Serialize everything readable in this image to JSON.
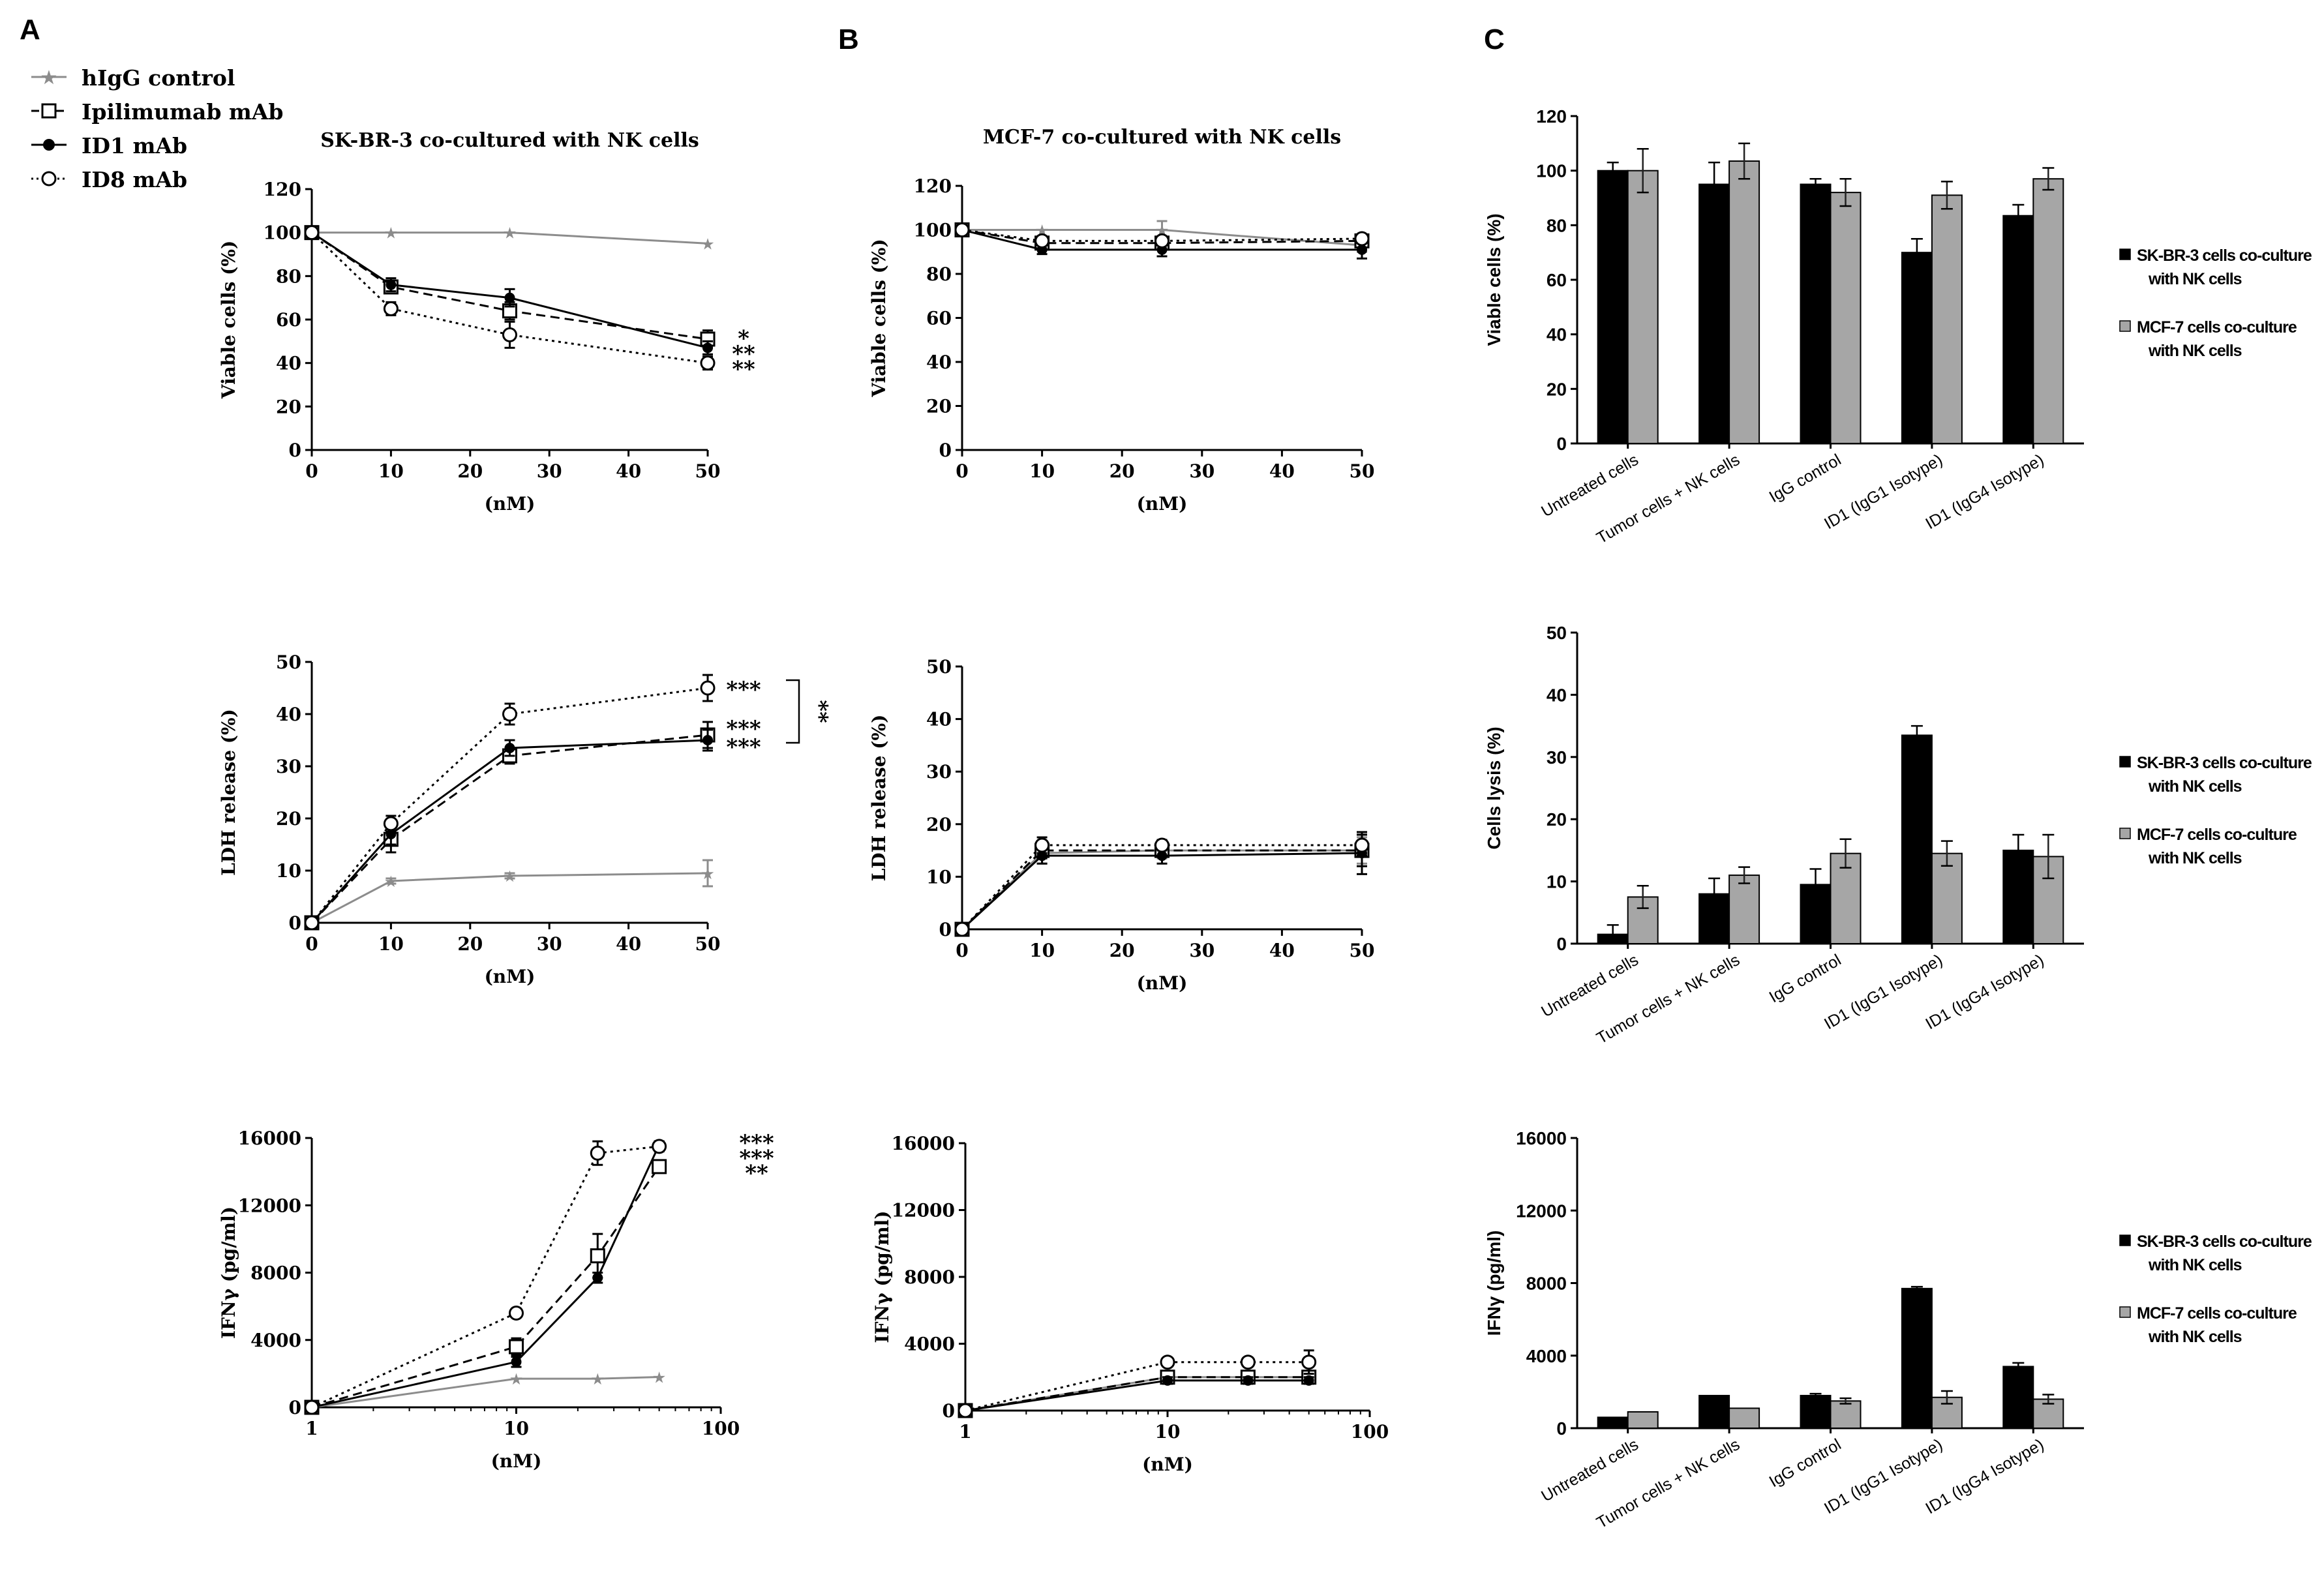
{
  "panel_labels": [
    "A",
    "B",
    "C"
  ],
  "legend_a": [
    {
      "label": "hIgG control",
      "marker": "star",
      "dash": "solid",
      "color": "#8c8c8c"
    },
    {
      "label": "Ipilimumab mAb",
      "marker": "square",
      "dash": "longdash",
      "color": "#000000"
    },
    {
      "label": "ID1 mAb",
      "marker": "dot",
      "dash": "solid",
      "color": "#000000"
    },
    {
      "label": "ID8 mAb",
      "marker": "circle",
      "dash": "dotted",
      "color": "#000000"
    }
  ],
  "bar_legend": [
    {
      "label_lines": [
        "SK-BR-3 cells co-culture",
        "with NK cells"
      ],
      "color": "#000000"
    },
    {
      "label_lines": [
        "MCF-7 cells co-culture",
        "with NK cells"
      ],
      "color": "#a6a6a6"
    }
  ],
  "colors": {
    "grey_series": "#8c8c8c",
    "grey_bar": "#a6a6a6",
    "black": "#000000"
  },
  "chart_data": [
    {
      "id": "A1",
      "type": "line",
      "title": "SK-BR-3 co-cultured with NK cells",
      "xlabel": "(nM)",
      "ylabel": "Viable cells (%)",
      "xscale": "linear",
      "xlim": [
        0,
        50
      ],
      "xticks": [
        0,
        10,
        20,
        30,
        40,
        50
      ],
      "ylim": [
        0,
        120
      ],
      "yticks": [
        0,
        20,
        40,
        60,
        80,
        100,
        120
      ],
      "series": [
        {
          "x": [
            0,
            10,
            25,
            50
          ],
          "y": [
            100,
            100,
            100,
            95
          ],
          "err": [
            0,
            0,
            0,
            0
          ]
        },
        {
          "x": [
            0,
            10,
            25,
            50
          ],
          "y": [
            100,
            75,
            64,
            51
          ],
          "err": [
            0,
            3,
            4,
            4
          ]
        },
        {
          "x": [
            0,
            10,
            25,
            50
          ],
          "y": [
            100,
            76,
            70,
            47
          ],
          "err": [
            0,
            3,
            4,
            3
          ]
        },
        {
          "x": [
            0,
            10,
            25,
            50
          ],
          "y": [
            100,
            65,
            53,
            40
          ],
          "err": [
            0,
            3,
            6,
            3
          ]
        }
      ],
      "annotations": [
        "*",
        "**",
        "**"
      ]
    },
    {
      "id": "B1",
      "type": "line",
      "title": "MCF-7 co-cultured with NK cells",
      "xlabel": "(nM)",
      "ylabel": "Viable cells (%)",
      "xscale": "linear",
      "xlim": [
        0,
        50
      ],
      "xticks": [
        0,
        10,
        20,
        30,
        40,
        50
      ],
      "ylim": [
        0,
        120
      ],
      "yticks": [
        0,
        20,
        40,
        60,
        80,
        100,
        120
      ],
      "series": [
        {
          "x": [
            0,
            10,
            25,
            50
          ],
          "y": [
            100,
            100,
            100,
            93
          ],
          "err": [
            0,
            0,
            4,
            3
          ]
        },
        {
          "x": [
            0,
            10,
            25,
            50
          ],
          "y": [
            100,
            94,
            94,
            95
          ],
          "err": [
            0,
            2,
            3,
            2
          ]
        },
        {
          "x": [
            0,
            10,
            25,
            50
          ],
          "y": [
            100,
            91,
            91,
            91
          ],
          "err": [
            0,
            2,
            3,
            4
          ]
        },
        {
          "x": [
            0,
            10,
            25,
            50
          ],
          "y": [
            100,
            95,
            95,
            96
          ],
          "err": [
            0,
            2,
            2,
            2
          ]
        }
      ],
      "annotations": []
    },
    {
      "id": "A2",
      "type": "line",
      "title": "",
      "xlabel": "(nM)",
      "ylabel": "LDH release (%)",
      "xscale": "linear",
      "xlim": [
        0,
        50
      ],
      "xticks": [
        0,
        10,
        20,
        30,
        40,
        50
      ],
      "ylim": [
        0,
        50
      ],
      "yticks": [
        0,
        10,
        20,
        30,
        40,
        50
      ],
      "series": [
        {
          "x": [
            0,
            10,
            25,
            50
          ],
          "y": [
            0,
            8,
            9,
            9.5
          ],
          "err": [
            0,
            0.5,
            0.5,
            2.5
          ]
        },
        {
          "x": [
            0,
            10,
            25,
            50
          ],
          "y": [
            0,
            16,
            32,
            36
          ],
          "err": [
            0,
            2.5,
            1.5,
            2.5
          ]
        },
        {
          "x": [
            0,
            10,
            25,
            50
          ],
          "y": [
            0,
            17,
            33.5,
            35
          ],
          "err": [
            0,
            2,
            1.5,
            2
          ]
        },
        {
          "x": [
            0,
            10,
            25,
            50
          ],
          "y": [
            0,
            19,
            40,
            45
          ],
          "err": [
            0,
            1.5,
            2,
            2.5
          ]
        }
      ],
      "annotations": [
        "***",
        "***",
        "***",
        "**"
      ]
    },
    {
      "id": "B2",
      "type": "line",
      "title": "",
      "xlabel": "(nM)",
      "ylabel": "LDH release (%)",
      "xscale": "linear",
      "xlim": [
        0,
        50
      ],
      "xticks": [
        0,
        10,
        20,
        30,
        40,
        50
      ],
      "ylim": [
        0,
        50
      ],
      "yticks": [
        0,
        10,
        20,
        30,
        40,
        50
      ],
      "series": [
        {
          "x": [
            0,
            10,
            25,
            50
          ],
          "y": [
            0,
            14.5,
            15,
            15
          ],
          "err": [
            0,
            2,
            1.5,
            2.5
          ]
        },
        {
          "x": [
            0,
            10,
            25,
            50
          ],
          "y": [
            0,
            15,
            15,
            15
          ],
          "err": [
            0,
            1.5,
            1,
            3
          ]
        },
        {
          "x": [
            0,
            10,
            25,
            50
          ],
          "y": [
            0,
            14,
            14,
            14.5
          ],
          "err": [
            0,
            1.5,
            1.5,
            4
          ]
        },
        {
          "x": [
            0,
            10,
            25,
            50
          ],
          "y": [
            0,
            16,
            16,
            16
          ],
          "err": [
            0,
            1.5,
            1,
            2
          ]
        }
      ],
      "annotations": []
    },
    {
      "id": "A3",
      "type": "line",
      "title": "",
      "xlabel": "(nM)",
      "ylabel": "IFNγ (pg/ml)",
      "xscale": "log",
      "xlim": [
        1,
        100
      ],
      "xticks": [
        1,
        10,
        100
      ],
      "ylim": [
        0,
        16000
      ],
      "yticks": [
        0,
        4000,
        8000,
        12000,
        16000
      ],
      "series": [
        {
          "x": [
            1,
            10,
            25,
            50
          ],
          "y": [
            0,
            1700,
            1700,
            1800
          ],
          "err": [
            0,
            0,
            0,
            0
          ]
        },
        {
          "x": [
            1,
            10,
            25,
            50
          ],
          "y": [
            0,
            3600,
            9000,
            14300
          ],
          "err": [
            0,
            500,
            1300,
            300
          ]
        },
        {
          "x": [
            1,
            10,
            25,
            50
          ],
          "y": [
            0,
            2700,
            7700,
            15600
          ],
          "err": [
            0,
            300,
            300,
            200
          ]
        },
        {
          "x": [
            1,
            10,
            25,
            50
          ],
          "y": [
            0,
            5600,
            15100,
            15500
          ],
          "err": [
            0,
            200,
            700,
            300
          ]
        }
      ],
      "annotations": [
        "***",
        "***",
        "**"
      ]
    },
    {
      "id": "B3",
      "type": "line",
      "title": "",
      "xlabel": "(nM)",
      "ylabel": "IFNγ (pg/ml)",
      "xscale": "log",
      "xlim": [
        1,
        100
      ],
      "xticks": [
        1,
        10,
        100
      ],
      "ylim": [
        0,
        16000
      ],
      "yticks": [
        0,
        4000,
        8000,
        12000,
        16000
      ],
      "series": [
        {
          "x": [
            1,
            10,
            25,
            50
          ],
          "y": [
            0,
            2000,
            2000,
            2000
          ],
          "err": [
            0,
            0,
            0,
            0
          ]
        },
        {
          "x": [
            1,
            10,
            25,
            50
          ],
          "y": [
            0,
            2000,
            2000,
            2000
          ],
          "err": [
            0,
            300,
            300,
            300
          ]
        },
        {
          "x": [
            1,
            10,
            25,
            50
          ],
          "y": [
            0,
            1800,
            1800,
            1800
          ],
          "err": [
            0,
            200,
            200,
            200
          ]
        },
        {
          "x": [
            1,
            10,
            25,
            50
          ],
          "y": [
            0,
            2900,
            2900,
            2900
          ],
          "err": [
            0,
            150,
            150,
            700
          ]
        }
      ],
      "annotations": []
    },
    {
      "id": "C1",
      "type": "bar",
      "title": "",
      "xlabel": "",
      "ylabel": "Viable cells (%)",
      "ylim": [
        0,
        120
      ],
      "yticks": [
        0,
        20,
        40,
        60,
        80,
        100,
        120
      ],
      "categories": [
        "Untreated cells",
        "Tumor cells + NK cells",
        "IgG control",
        "ID1 (IgG1 Isotype)",
        "ID1 (IgG4 Isotype)"
      ],
      "series": [
        {
          "values": [
            100,
            95,
            95,
            70,
            83.5
          ],
          "err": [
            3,
            8,
            2,
            5,
            4
          ]
        },
        {
          "values": [
            100,
            103.5,
            92,
            91,
            97
          ],
          "err": [
            8,
            6.5,
            5,
            5,
            4
          ]
        }
      ]
    },
    {
      "id": "C2",
      "type": "bar",
      "title": "",
      "xlabel": "",
      "ylabel": "Cells lysis (%)",
      "ylim": [
        0,
        50
      ],
      "yticks": [
        0,
        10,
        20,
        30,
        40,
        50
      ],
      "categories": [
        "Untreated cells",
        "Tumor cells + NK cells",
        "IgG control",
        "ID1 (IgG1 Isotype)",
        "ID1 (IgG4 Isotype)"
      ],
      "series": [
        {
          "values": [
            1.5,
            8,
            9.5,
            33.5,
            15
          ],
          "err": [
            1.5,
            2.5,
            2.5,
            1.5,
            2.5
          ]
        },
        {
          "values": [
            7.5,
            11,
            14.5,
            14.5,
            14
          ],
          "err": [
            1.8,
            1.3,
            2.3,
            2,
            3.5
          ]
        }
      ]
    },
    {
      "id": "C3",
      "type": "bar",
      "title": "",
      "xlabel": "",
      "ylabel": "IFNγ (pg/ml)",
      "ylim": [
        0,
        16000
      ],
      "yticks": [
        0,
        4000,
        8000,
        12000,
        16000
      ],
      "categories": [
        "Untreated cells",
        "Tumor cells + NK cells",
        "IgG control",
        "ID1 (IgG1 Isotype)",
        "ID1 (IgG4 Isotype)"
      ],
      "series": [
        {
          "values": [
            600,
            1800,
            1800,
            7700,
            3400
          ],
          "err": [
            0,
            0,
            100,
            100,
            200
          ]
        },
        {
          "values": [
            900,
            1100,
            1500,
            1700,
            1600
          ],
          "err": [
            0,
            0,
            150,
            350,
            250
          ]
        }
      ]
    }
  ]
}
